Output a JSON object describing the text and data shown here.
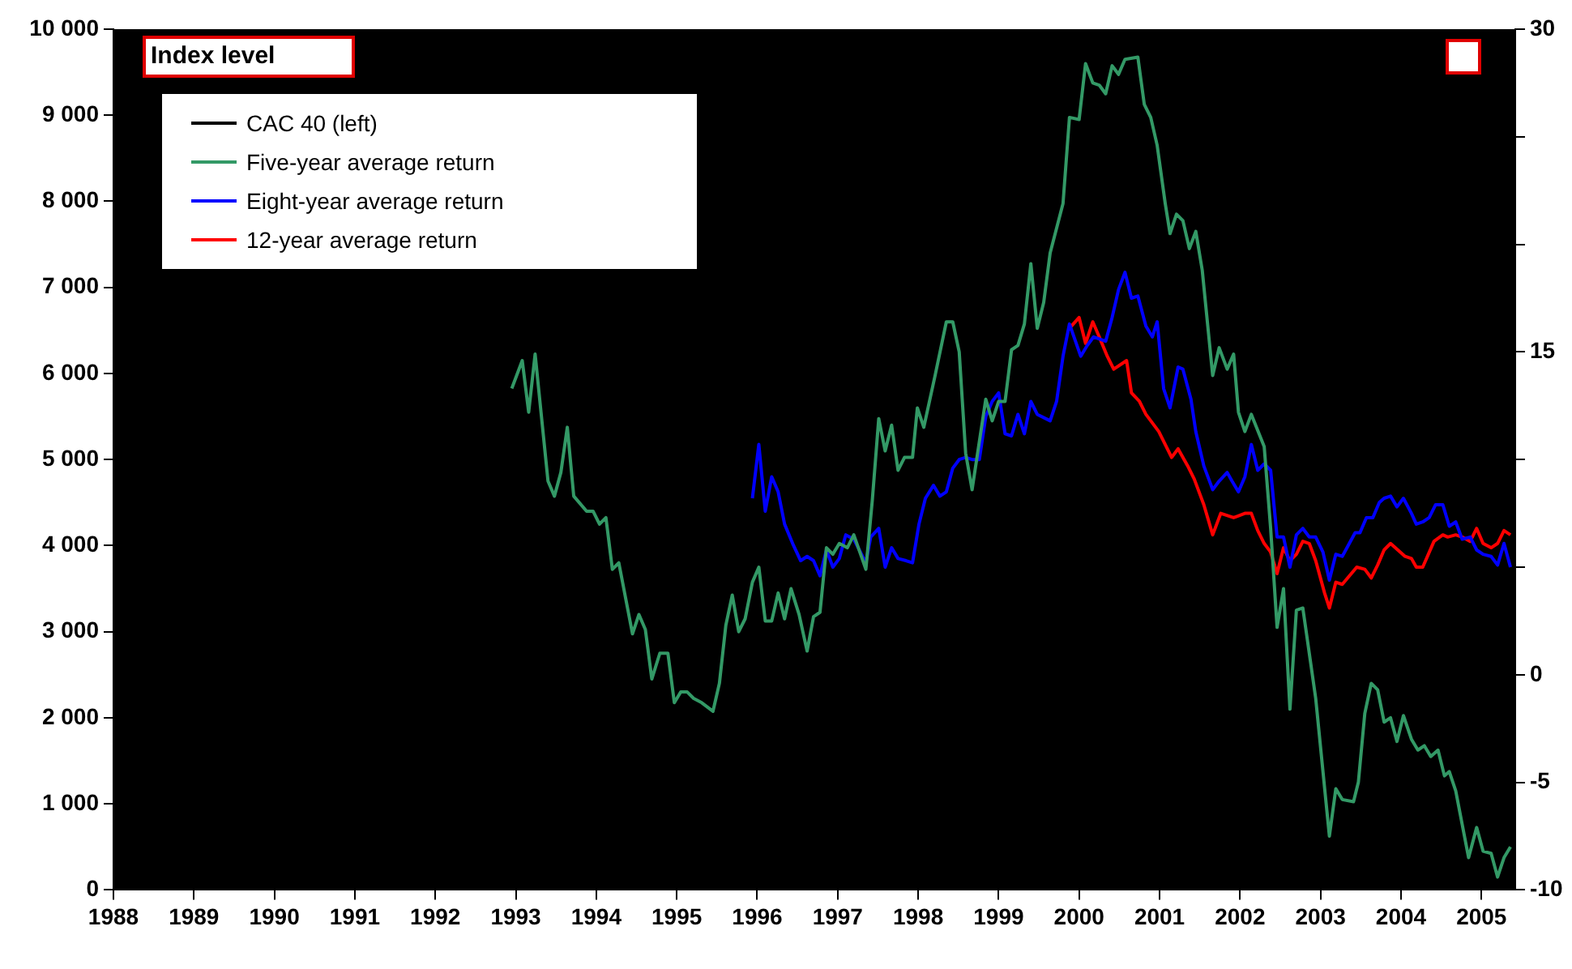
{
  "chart_data": {
    "type": "line",
    "ylabel": "Index level",
    "legend": "top left",
    "marker": "none",
    "line_style": "solid",
    "grid": false,
    "xlim": [
      1988,
      2005.42
    ],
    "xticks": [
      1988,
      1989,
      1990,
      1991,
      1992,
      1993,
      1994,
      1995,
      1996,
      1997,
      1998,
      1999,
      2000,
      2001,
      2002,
      2003,
      2004,
      2005
    ],
    "ylim": [
      0,
      10000
    ],
    "yticks": [
      0,
      {
        "value": 1000,
        "label": "1 000"
      },
      {
        "value": 2000,
        "label": "2 000"
      },
      {
        "value": 3000,
        "label": "3 000"
      },
      {
        "value": 4000,
        "label": "4 000"
      },
      {
        "value": 5000,
        "label": "5 000"
      },
      {
        "value": 6000,
        "label": "6 000"
      },
      {
        "value": 7000,
        "label": "7 000"
      },
      {
        "value": 8000,
        "label": "8 000"
      },
      {
        "value": 9000,
        "label": "9 000"
      },
      {
        "value": 10000,
        "label": "10 000"
      }
    ],
    "y2lim": [
      -10,
      30
    ],
    "y2ticks": [
      -10,
      -5,
      0,
      {
        "value": 5,
        "label": null
      },
      {
        "value": 10,
        "label": null
      },
      15,
      {
        "value": 20,
        "label": null
      },
      {
        "value": 25,
        "label": null
      },
      30
    ],
    "series": [
      {
        "name": "CAC 40 (left)",
        "color": "#000000",
        "axis": "y"
      },
      {
        "name": "Five-year average return",
        "color": "#339966",
        "axis": "y2",
        "x": [
          1992.95,
          1993.08,
          1993.16,
          1993.24,
          1993.4,
          1993.48,
          1993.56,
          1993.64,
          1993.72,
          1993.88,
          1993.96,
          1994.04,
          1994.12,
          1994.2,
          1994.28,
          1994.45,
          1994.53,
          1994.61,
          1994.69,
          1994.79,
          1994.89,
          1994.97,
          1995.05,
          1995.13,
          1995.21,
          1995.31,
          1995.45,
          1995.53,
          1995.61,
          1995.69,
          1995.77,
          1995.85,
          1995.94,
          1996.02,
          1996.1,
          1996.18,
          1996.26,
          1996.34,
          1996.42,
          1996.52,
          1996.62,
          1996.7,
          1996.78,
          1996.86,
          1996.94,
          1997.02,
          1997.12,
          1997.2,
          1997.35,
          1997.43,
          1997.51,
          1997.59,
          1997.67,
          1997.75,
          1997.83,
          1997.93,
          1997.99,
          1998.07,
          1998.21,
          1998.35,
          1998.43,
          1998.51,
          1998.59,
          1998.67,
          1998.84,
          1998.92,
          1999.0,
          1999.08,
          1999.16,
          1999.24,
          1999.32,
          1999.4,
          1999.48,
          1999.56,
          1999.64,
          1999.8,
          1999.88,
          2000.0,
          2000.08,
          2000.17,
          2000.25,
          2000.33,
          2000.41,
          2000.49,
          2000.57,
          2000.73,
          2000.81,
          2000.89,
          2000.97,
          2001.07,
          2001.13,
          2001.21,
          2001.29,
          2001.37,
          2001.45,
          2001.53,
          2001.66,
          2001.74,
          2001.84,
          2001.92,
          2001.98,
          2002.06,
          2002.14,
          2002.3,
          2002.38,
          2002.46,
          2002.54,
          2002.62,
          2002.7,
          2002.78,
          2002.94,
          2003.11,
          2003.19,
          2003.27,
          2003.41,
          2003.47,
          2003.55,
          2003.63,
          2003.71,
          2003.79,
          2003.87,
          2003.95,
          2004.03,
          2004.13,
          2004.21,
          2004.29,
          2004.37,
          2004.46,
          2004.54,
          2004.6,
          2004.68,
          2004.84,
          2004.94,
          2005.02,
          2005.12,
          2005.2,
          2005.28,
          2005.36
        ],
        "values": [
          13.3,
          14.6,
          12.2,
          14.9,
          9.0,
          8.3,
          9.4,
          11.5,
          8.3,
          7.6,
          7.6,
          7.0,
          7.3,
          4.9,
          5.2,
          1.9,
          2.8,
          2.1,
          -0.2,
          1.0,
          1.0,
          -1.3,
          -0.8,
          -0.8,
          -1.1,
          -1.3,
          -1.7,
          -0.4,
          2.3,
          3.7,
          2.0,
          2.6,
          4.3,
          5.0,
          2.5,
          2.5,
          3.8,
          2.6,
          4.0,
          2.8,
          1.1,
          2.7,
          2.9,
          5.9,
          5.6,
          6.1,
          5.9,
          6.5,
          4.9,
          8.1,
          11.9,
          10.4,
          11.6,
          9.5,
          10.1,
          10.1,
          12.4,
          11.5,
          13.9,
          16.4,
          16.4,
          15.0,
          10.3,
          8.6,
          12.8,
          11.8,
          12.7,
          12.7,
          15.1,
          15.3,
          16.3,
          19.1,
          16.1,
          17.3,
          19.6,
          21.9,
          25.9,
          25.8,
          28.4,
          27.5,
          27.4,
          27.0,
          28.3,
          27.9,
          28.6,
          28.7,
          26.5,
          25.9,
          24.6,
          21.9,
          20.5,
          21.4,
          21.1,
          19.8,
          20.6,
          18.8,
          13.9,
          15.2,
          14.2,
          14.9,
          12.2,
          11.3,
          12.1,
          10.6,
          6.8,
          2.2,
          4.0,
          -1.6,
          3.0,
          3.1,
          -1.1,
          -7.5,
          -5.3,
          -5.8,
          -5.9,
          -5.0,
          -1.8,
          -0.4,
          -0.7,
          -2.2,
          -2.0,
          -3.1,
          -1.9,
          -3.0,
          -3.5,
          -3.3,
          -3.8,
          -3.5,
          -4.7,
          -4.5,
          -5.4,
          -8.5,
          -7.1,
          -8.2,
          -8.3,
          -9.4,
          -8.5,
          -8.0
        ]
      },
      {
        "name": "Eight-year average return",
        "color": "#0000ff",
        "axis": "y2",
        "x": [
          1995.94,
          1996.02,
          1996.1,
          1996.18,
          1996.26,
          1996.34,
          1996.44,
          1996.54,
          1996.62,
          1996.7,
          1996.78,
          1996.86,
          1996.94,
          1997.02,
          1997.1,
          1997.2,
          1997.35,
          1997.41,
          1997.51,
          1997.59,
          1997.67,
          1997.75,
          1997.85,
          1997.93,
          1998.01,
          1998.09,
          1998.19,
          1998.27,
          1998.35,
          1998.43,
          1998.51,
          1998.59,
          1998.67,
          1998.76,
          1998.84,
          1998.92,
          1999.0,
          1999.08,
          1999.16,
          1999.24,
          1999.32,
          1999.4,
          1999.48,
          1999.64,
          1999.72,
          1999.8,
          1999.88,
          2000.02,
          2000.1,
          2000.18,
          2000.33,
          2000.41,
          2000.49,
          2000.57,
          2000.65,
          2000.73,
          2000.83,
          2000.91,
          2000.97,
          2001.05,
          2001.13,
          2001.23,
          2001.29,
          2001.39,
          2001.45,
          2001.55,
          2001.66,
          2001.74,
          2001.84,
          2001.9,
          2001.98,
          2002.06,
          2002.14,
          2002.22,
          2002.3,
          2002.38,
          2002.46,
          2002.54,
          2002.62,
          2002.7,
          2002.78,
          2002.86,
          2002.94,
          2003.03,
          2003.11,
          2003.19,
          2003.27,
          2003.43,
          2003.49,
          2003.57,
          2003.65,
          2003.73,
          2003.79,
          2003.87,
          2003.95,
          2004.03,
          2004.13,
          2004.19,
          2004.27,
          2004.35,
          2004.43,
          2004.52,
          2004.6,
          2004.68,
          2004.76,
          2004.86,
          2004.94,
          2005.02,
          2005.12,
          2005.2,
          2005.28,
          2005.36
        ],
        "values": [
          8.2,
          10.7,
          7.6,
          9.2,
          8.5,
          7.0,
          6.1,
          5.3,
          5.5,
          5.3,
          4.6,
          5.8,
          5.0,
          5.4,
          6.5,
          6.3,
          5.2,
          6.4,
          6.8,
          5.0,
          5.9,
          5.4,
          5.3,
          5.2,
          7.0,
          8.2,
          8.8,
          8.3,
          8.5,
          9.6,
          10.0,
          10.1,
          10.0,
          10.0,
          12.0,
          12.7,
          13.1,
          11.2,
          11.1,
          12.1,
          11.2,
          12.7,
          12.1,
          11.8,
          12.7,
          14.8,
          16.3,
          14.8,
          15.3,
          15.7,
          15.5,
          16.6,
          17.9,
          18.7,
          17.5,
          17.6,
          16.2,
          15.7,
          16.4,
          13.3,
          12.4,
          14.3,
          14.2,
          12.8,
          11.3,
          9.7,
          8.6,
          9.0,
          9.4,
          9.0,
          8.5,
          9.2,
          10.7,
          9.5,
          9.8,
          9.5,
          6.4,
          6.4,
          5.0,
          6.5,
          6.8,
          6.4,
          6.4,
          5.7,
          4.4,
          5.6,
          5.5,
          6.6,
          6.6,
          7.3,
          7.3,
          8.0,
          8.2,
          8.3,
          7.8,
          8.2,
          7.5,
          7.0,
          7.1,
          7.3,
          7.9,
          7.9,
          6.9,
          7.1,
          6.3,
          6.4,
          5.8,
          5.6,
          5.5,
          5.1,
          6.1,
          5.0
        ]
      },
      {
        "name": "12-year average return",
        "color": "#ff0000",
        "axis": "y2",
        "x": [
          1999.88,
          2000.0,
          2000.08,
          2000.17,
          2000.25,
          2000.35,
          2000.43,
          2000.59,
          2000.65,
          2000.75,
          2000.83,
          2000.99,
          2001.15,
          2001.23,
          2001.35,
          2001.43,
          2001.55,
          2001.66,
          2001.76,
          2001.92,
          2002.06,
          2002.14,
          2002.22,
          2002.3,
          2002.38,
          2002.46,
          2002.54,
          2002.62,
          2002.7,
          2002.78,
          2002.86,
          2002.94,
          2003.05,
          2003.11,
          2003.19,
          2003.27,
          2003.45,
          2003.55,
          2003.63,
          2003.71,
          2003.79,
          2003.87,
          2004.05,
          2004.13,
          2004.19,
          2004.27,
          2004.41,
          2004.52,
          2004.58,
          2004.68,
          2004.76,
          2004.86,
          2004.94,
          2005.02,
          2005.12,
          2005.2,
          2005.28,
          2005.36
        ],
        "values": [
          16.1,
          16.6,
          15.4,
          16.4,
          15.7,
          14.8,
          14.2,
          14.6,
          13.1,
          12.7,
          12.1,
          11.3,
          10.1,
          10.5,
          9.7,
          9.1,
          7.9,
          6.5,
          7.5,
          7.3,
          7.5,
          7.5,
          6.7,
          6.1,
          5.7,
          4.7,
          5.9,
          5.3,
          5.6,
          6.2,
          6.1,
          5.3,
          3.8,
          3.1,
          4.3,
          4.2,
          5.0,
          4.9,
          4.5,
          5.1,
          5.8,
          6.1,
          5.5,
          5.4,
          5.0,
          5.0,
          6.2,
          6.5,
          6.4,
          6.5,
          6.4,
          6.2,
          6.8,
          6.1,
          5.9,
          6.1,
          6.7,
          6.5
        ]
      }
    ]
  }
}
